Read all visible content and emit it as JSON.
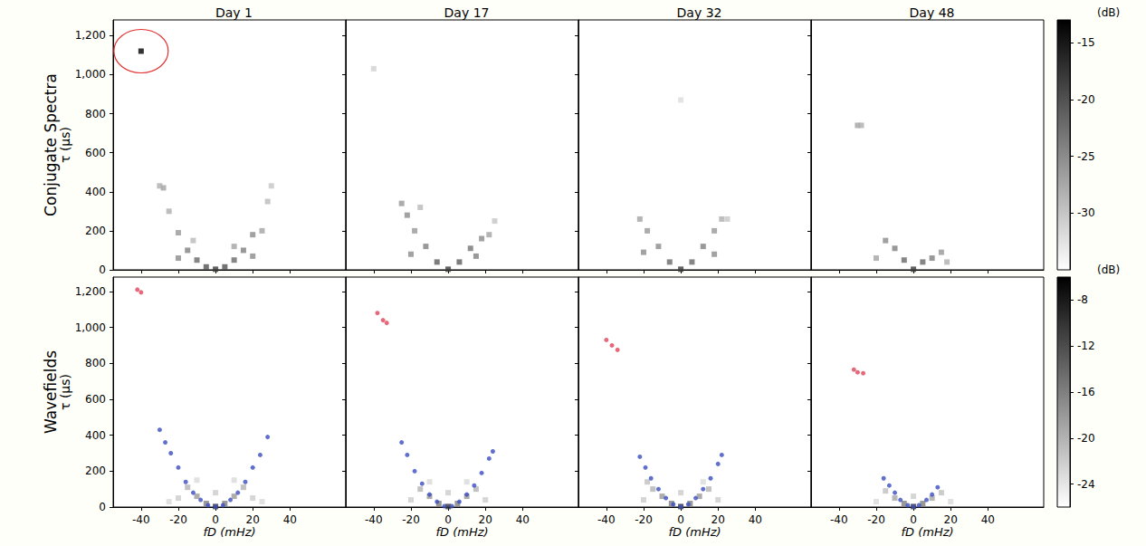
{
  "chart_data": {
    "type": "scatter",
    "xlabel": "fD (mHz)",
    "xlim": [
      -55,
      70
    ],
    "xticks": [
      -40,
      -20,
      0,
      20,
      40
    ],
    "columns": [
      "Day 1",
      "Day 17",
      "Day 32",
      "Day 48"
    ],
    "rows": [
      {
        "label": "Conjugate Spectra",
        "ylabel": "τ (μs)",
        "ylim": [
          0,
          1280
        ],
        "yticks": [
          0,
          200,
          400,
          600,
          800,
          1000,
          1200
        ],
        "colorbar": {
          "label": "(dB)",
          "range": [
            -35,
            -13
          ],
          "ticks": [
            -15,
            -20,
            -25,
            -30
          ]
        },
        "panels": [
          {
            "points": [
              [
                -10,
                50,
                -22
              ],
              [
                -5,
                15,
                -20
              ],
              [
                0,
                3,
                -18
              ],
              [
                5,
                15,
                -20
              ],
              [
                10,
                50,
                -22
              ],
              [
                15,
                100,
                -24
              ],
              [
                20,
                180,
                -25
              ],
              [
                25,
                200,
                -27
              ],
              [
                28,
                350,
                -29
              ],
              [
                30,
                430,
                -30
              ],
              [
                -15,
                100,
                -24
              ],
              [
                -20,
                190,
                -26
              ],
              [
                -25,
                300,
                -28
              ],
              [
                -28,
                420,
                -27
              ],
              [
                -30,
                430,
                -28
              ],
              [
                -20,
                60,
                -25
              ],
              [
                20,
                70,
                -25
              ],
              [
                10,
                120,
                -27
              ],
              [
                -12,
                150,
                -29
              ],
              [
                -40,
                1120,
                -13
              ]
            ],
            "circled": [
              -40,
              1120
            ]
          },
          {
            "points": [
              [
                -25,
                340,
                -26
              ],
              [
                -22,
                280,
                -25
              ],
              [
                -18,
                200,
                -26
              ],
              [
                -12,
                120,
                -24
              ],
              [
                -6,
                40,
                -21
              ],
              [
                0,
                3,
                -18
              ],
              [
                6,
                40,
                -21
              ],
              [
                12,
                110,
                -23
              ],
              [
                18,
                160,
                -25
              ],
              [
                22,
                180,
                -27
              ],
              [
                25,
                250,
                -30
              ],
              [
                -20,
                80,
                -25
              ],
              [
                15,
                70,
                -24
              ],
              [
                -15,
                320,
                -29
              ],
              [
                -40,
                1030,
                -31
              ]
            ]
          },
          {
            "points": [
              [
                -22,
                260,
                -27
              ],
              [
                -18,
                200,
                -26
              ],
              [
                -12,
                120,
                -25
              ],
              [
                -6,
                40,
                -22
              ],
              [
                0,
                3,
                -18
              ],
              [
                6,
                40,
                -22
              ],
              [
                12,
                120,
                -24
              ],
              [
                18,
                200,
                -26
              ],
              [
                22,
                260,
                -28
              ],
              [
                25,
                260,
                -30
              ],
              [
                -20,
                90,
                -25
              ],
              [
                18,
                80,
                -25
              ],
              [
                0,
                870,
                -32
              ]
            ]
          },
          {
            "points": [
              [
                -15,
                150,
                -25
              ],
              [
                -10,
                110,
                -24
              ],
              [
                -5,
                50,
                -22
              ],
              [
                0,
                3,
                -18
              ],
              [
                5,
                40,
                -22
              ],
              [
                10,
                60,
                -24
              ],
              [
                15,
                90,
                -26
              ],
              [
                -20,
                60,
                -27
              ],
              [
                18,
                40,
                -28
              ],
              [
                -30,
                740,
                -27
              ],
              [
                -28,
                740,
                -28
              ]
            ]
          }
        ]
      },
      {
        "label": "Wavefields",
        "ylabel": "τ (μs)",
        "ylim": [
          0,
          1280
        ],
        "yticks": [
          0,
          200,
          400,
          600,
          800,
          1000,
          1200
        ],
        "colorbar": {
          "label": "(dB)",
          "range": [
            -26,
            -6
          ],
          "ticks": [
            -8,
            -12,
            -16,
            -20,
            -24
          ]
        },
        "panels": [
          {
            "points": [
              [
                0,
                3,
                -10
              ],
              [
                -5,
                20,
                -16
              ],
              [
                5,
                20,
                -16
              ],
              [
                -10,
                60,
                -18
              ],
              [
                10,
                60,
                -18
              ],
              [
                -15,
                110,
                -20
              ],
              [
                15,
                110,
                -20
              ],
              [
                -20,
                50,
                -22
              ],
              [
                20,
                50,
                -22
              ],
              [
                0,
                80,
                -22
              ],
              [
                -25,
                30,
                -23
              ],
              [
                25,
                30,
                -23
              ],
              [
                -10,
                150,
                -23
              ],
              [
                10,
                150,
                -23
              ]
            ],
            "overlays": [
              {
                "color": "#3b4cc0",
                "points": [
                  [
                    -30,
                    430
                  ],
                  [
                    -27,
                    360
                  ],
                  [
                    -24,
                    300
                  ],
                  [
                    -20,
                    220
                  ],
                  [
                    -16,
                    140
                  ],
                  [
                    -12,
                    80
                  ],
                  [
                    -8,
                    40
                  ],
                  [
                    -4,
                    10
                  ],
                  [
                    0,
                    2
                  ],
                  [
                    4,
                    10
                  ],
                  [
                    8,
                    40
                  ],
                  [
                    12,
                    80
                  ],
                  [
                    16,
                    140
                  ],
                  [
                    20,
                    220
                  ],
                  [
                    24,
                    290
                  ],
                  [
                    28,
                    390
                  ]
                ]
              },
              {
                "color": "#e0435a",
                "points": [
                  [
                    -42,
                    1210
                  ],
                  [
                    -40,
                    1195
                  ]
                ]
              }
            ]
          },
          {
            "points": [
              [
                0,
                3,
                -10
              ],
              [
                -5,
                20,
                -16
              ],
              [
                5,
                20,
                -16
              ],
              [
                -10,
                60,
                -18
              ],
              [
                10,
                60,
                -18
              ],
              [
                -15,
                100,
                -20
              ],
              [
                15,
                100,
                -20
              ],
              [
                -20,
                40,
                -22
              ],
              [
                20,
                40,
                -22
              ],
              [
                0,
                80,
                -22
              ],
              [
                -10,
                140,
                -23
              ],
              [
                10,
                140,
                -23
              ]
            ],
            "overlays": [
              {
                "color": "#3b4cc0",
                "points": [
                  [
                    -25,
                    360
                  ],
                  [
                    -22,
                    290
                  ],
                  [
                    -18,
                    200
                  ],
                  [
                    -14,
                    130
                  ],
                  [
                    -10,
                    70
                  ],
                  [
                    -6,
                    30
                  ],
                  [
                    -2,
                    5
                  ],
                  [
                    2,
                    5
                  ],
                  [
                    6,
                    30
                  ],
                  [
                    10,
                    70
                  ],
                  [
                    14,
                    120
                  ],
                  [
                    18,
                    190
                  ],
                  [
                    22,
                    270
                  ],
                  [
                    24,
                    310
                  ]
                ]
              },
              {
                "color": "#e0435a",
                "points": [
                  [
                    -38,
                    1080
                  ],
                  [
                    -35,
                    1040
                  ],
                  [
                    -33,
                    1025
                  ]
                ]
              }
            ]
          },
          {
            "points": [
              [
                0,
                3,
                -10
              ],
              [
                -5,
                20,
                -16
              ],
              [
                5,
                20,
                -16
              ],
              [
                -10,
                60,
                -18
              ],
              [
                10,
                60,
                -18
              ],
              [
                -15,
                100,
                -20
              ],
              [
                15,
                100,
                -20
              ],
              [
                -20,
                40,
                -22
              ],
              [
                20,
                40,
                -22
              ],
              [
                0,
                80,
                -22
              ],
              [
                -18,
                140,
                -21
              ],
              [
                12,
                140,
                -23
              ]
            ],
            "overlays": [
              {
                "color": "#3b4cc0",
                "points": [
                  [
                    -22,
                    280
                  ],
                  [
                    -19,
                    220
                  ],
                  [
                    -16,
                    160
                  ],
                  [
                    -12,
                    100
                  ],
                  [
                    -8,
                    50
                  ],
                  [
                    -4,
                    15
                  ],
                  [
                    0,
                    2
                  ],
                  [
                    4,
                    15
                  ],
                  [
                    8,
                    50
                  ],
                  [
                    12,
                    100
                  ],
                  [
                    16,
                    160
                  ],
                  [
                    20,
                    240
                  ],
                  [
                    22,
                    290
                  ]
                ]
              },
              {
                "color": "#e0435a",
                "points": [
                  [
                    -40,
                    930
                  ],
                  [
                    -37,
                    900
                  ],
                  [
                    -34,
                    875
                  ]
                ]
              }
            ]
          },
          {
            "points": [
              [
                0,
                3,
                -10
              ],
              [
                -5,
                20,
                -16
              ],
              [
                5,
                20,
                -16
              ],
              [
                -10,
                50,
                -19
              ],
              [
                10,
                50,
                -19
              ],
              [
                -15,
                90,
                -21
              ],
              [
                15,
                80,
                -21
              ],
              [
                -20,
                30,
                -23
              ],
              [
                20,
                30,
                -23
              ],
              [
                0,
                60,
                -22
              ]
            ],
            "overlays": [
              {
                "color": "#3b4cc0",
                "points": [
                  [
                    -16,
                    160
                  ],
                  [
                    -13,
                    120
                  ],
                  [
                    -10,
                    80
                  ],
                  [
                    -7,
                    40
                  ],
                  [
                    -3,
                    10
                  ],
                  [
                    0,
                    2
                  ],
                  [
                    3,
                    10
                  ],
                  [
                    7,
                    40
                  ],
                  [
                    10,
                    70
                  ],
                  [
                    13,
                    110
                  ]
                ]
              },
              {
                "color": "#e0435a",
                "points": [
                  [
                    -32,
                    765
                  ],
                  [
                    -30,
                    750
                  ],
                  [
                    -27,
                    745
                  ]
                ]
              }
            ]
          }
        ]
      }
    ]
  }
}
